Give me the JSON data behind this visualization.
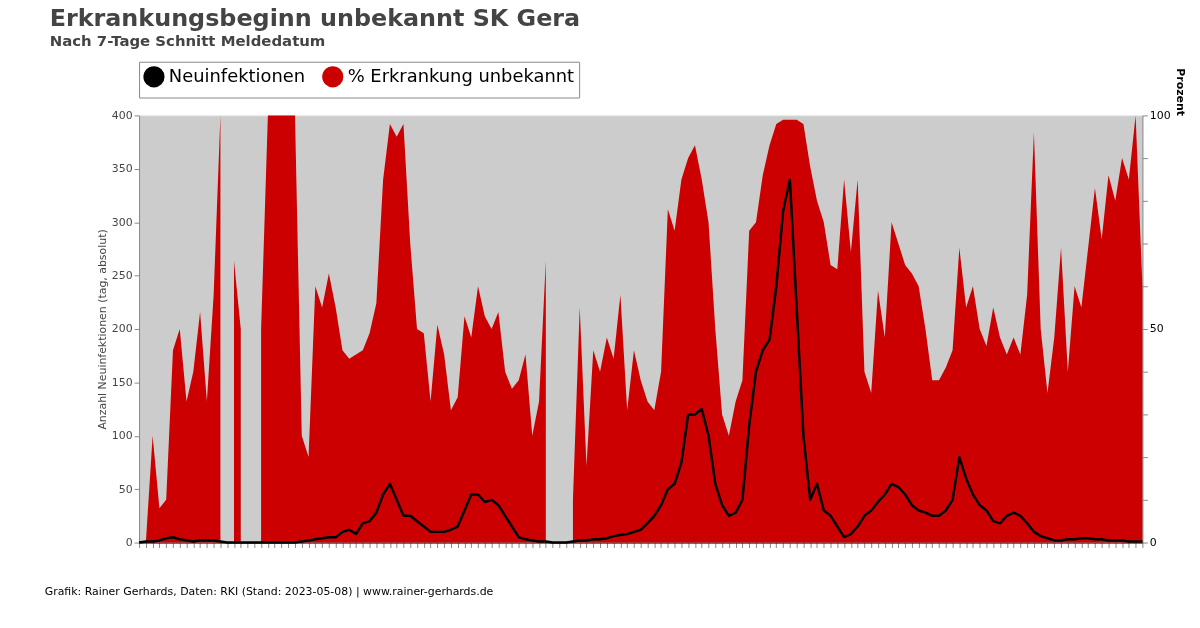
{
  "chart_data": {
    "type": "line",
    "title": "Erkrankungsbeginn unbekannt SK Gera",
    "subtitle": "Nach 7-Tage Schnitt Meldedatum",
    "ylabel": "Anzahl Neuinfektionen (tag, absolut)",
    "y2label": "Prozent",
    "categories": [
      null,
      null,
      null,
      null,
      null,
      null,
      null,
      null,
      null,
      null,
      null,
      null,
      null,
      null,
      null,
      null,
      null,
      null,
      null,
      null,
      null,
      null,
      null,
      null,
      null,
      null,
      null,
      null,
      null,
      null,
      null,
      null,
      null,
      null,
      null,
      null,
      null,
      null,
      null,
      null,
      null,
      null,
      null,
      null,
      null,
      null,
      null,
      null,
      null,
      null,
      null,
      null,
      null,
      null,
      null,
      null,
      null,
      null,
      null,
      null,
      null,
      null,
      null,
      null,
      null,
      null,
      null,
      null,
      null,
      null,
      null,
      null,
      null,
      null,
      null,
      null,
      null,
      null,
      null,
      null,
      null,
      null,
      null,
      null,
      null,
      null,
      null,
      null,
      null,
      null,
      null,
      null,
      null,
      null,
      null,
      null,
      null,
      null,
      null,
      null,
      null,
      null,
      null,
      null,
      null,
      null,
      null,
      null,
      null,
      null,
      null,
      null,
      null,
      null,
      null,
      null,
      null,
      null,
      null,
      null,
      null,
      null,
      null,
      null,
      null,
      null,
      null,
      null,
      null,
      null,
      null,
      null,
      null,
      null,
      null,
      null,
      null,
      null,
      null,
      null,
      null,
      null,
      null,
      null,
      null,
      null,
      null,
      null,
      null
    ],
    "series": [
      {
        "name": "Neuinfektionen",
        "color": "#000000",
        "values": [
          0,
          1,
          1,
          2,
          4,
          5,
          3,
          2,
          1,
          2,
          2,
          2,
          1,
          0,
          0,
          0,
          0,
          0,
          0,
          0,
          0,
          0,
          0,
          0,
          1,
          2,
          3,
          4,
          5,
          5,
          10,
          12,
          8,
          18,
          20,
          28,
          45,
          55,
          40,
          25,
          25,
          20,
          15,
          10,
          10,
          10,
          12,
          15,
          30,
          45,
          45,
          38,
          40,
          35,
          25,
          15,
          5,
          3,
          2,
          1,
          1,
          0,
          0,
          0,
          1,
          2,
          2,
          3,
          3,
          4,
          6,
          7,
          8,
          10,
          12,
          18,
          25,
          35,
          50,
          55,
          75,
          120,
          120,
          125,
          100,
          55,
          35,
          25,
          28,
          40,
          110,
          160,
          180,
          190,
          240,
          310,
          340,
          220,
          100,
          40,
          55,
          30,
          25,
          15,
          5,
          8,
          15,
          25,
          30,
          38,
          45,
          55,
          52,
          45,
          35,
          30,
          28,
          25,
          25,
          30,
          40,
          80,
          60,
          45,
          35,
          30,
          20,
          18,
          25,
          28,
          25,
          18,
          10,
          6,
          4,
          2,
          2,
          3,
          3,
          4,
          4,
          3,
          3,
          2,
          2,
          2,
          1,
          1,
          1
        ]
      },
      {
        "name": "% Erkrankung unbekannt",
        "type": "area",
        "axis": "y2",
        "color": "#cc0000",
        "values": [
          0,
          0,
          25,
          8,
          10,
          45,
          50,
          33,
          40,
          54,
          33,
          58,
          100,
          null,
          66,
          50,
          null,
          null,
          50,
          100,
          100,
          100,
          100,
          100,
          25,
          20,
          60,
          55,
          63,
          55,
          45,
          43,
          44,
          45,
          49,
          56,
          85,
          98,
          95,
          98,
          70,
          50,
          49,
          33,
          51,
          44,
          31,
          34,
          53,
          48,
          60,
          53,
          50,
          54,
          40,
          36,
          38,
          44,
          25,
          33,
          66,
          null,
          null,
          null,
          10,
          55,
          18,
          45,
          40,
          48,
          43,
          58,
          31,
          45,
          38,
          33,
          31,
          40,
          78,
          73,
          85,
          90,
          93,
          85,
          75,
          50,
          30,
          25,
          33,
          38,
          73,
          75,
          86,
          93,
          98,
          99,
          99,
          99,
          98,
          88,
          80,
          75,
          65,
          64,
          85,
          68,
          85,
          40,
          35,
          59,
          48,
          75,
          70,
          65,
          63,
          60,
          50,
          38,
          38,
          41,
          45,
          69,
          55,
          60,
          50,
          46,
          55,
          48,
          44,
          48,
          44,
          58,
          96,
          50,
          35,
          48,
          69,
          40,
          60,
          55,
          69,
          83,
          71,
          86,
          80,
          90,
          85,
          100,
          60
        ]
      }
    ],
    "ylim": [
      0,
      400
    ],
    "yticks": [
      0,
      50,
      100,
      150,
      200,
      250,
      300,
      350,
      400
    ],
    "y2lim": [
      0,
      100
    ],
    "y2ticks": [
      0,
      {
        "value": 10,
        "label": null
      },
      {
        "value": 20,
        "label": null
      },
      {
        "value": 30,
        "label": null
      },
      {
        "value": 40,
        "label": null
      },
      50,
      {
        "value": 60,
        "label": null
      },
      {
        "value": 70,
        "label": null
      },
      {
        "value": 80,
        "label": null
      },
      {
        "value": 90,
        "label": null
      },
      100
    ],
    "grid": false,
    "legend": "top",
    "annotations": [
      "Grafik: Rainer Gerhards, Daten: RKI (Stand: 2023-05-08) | www.rainer-gerhards.de"
    ]
  }
}
